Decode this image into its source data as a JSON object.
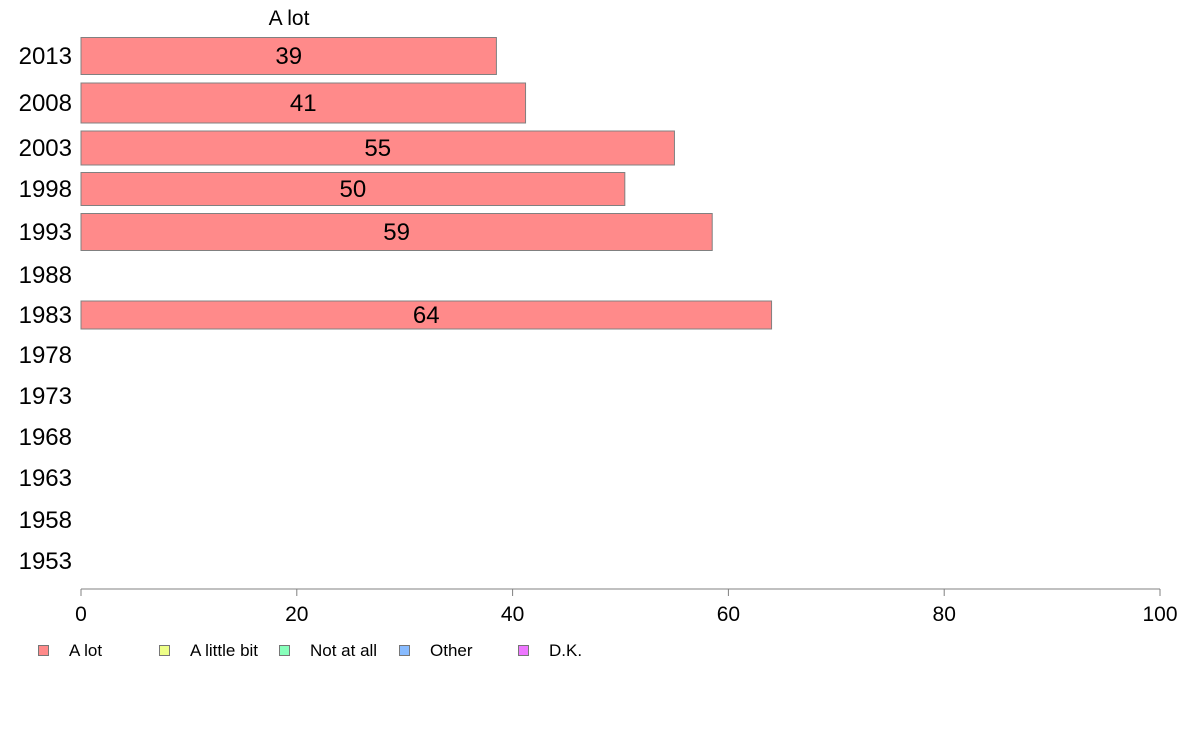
{
  "chart_data": {
    "type": "bar",
    "orientation": "horizontal",
    "title": "A lot",
    "categories": [
      "2013",
      "2008",
      "2003",
      "1998",
      "1993",
      "1988",
      "1983",
      "1978",
      "1973",
      "1968",
      "1963",
      "1958",
      "1953"
    ],
    "series": [
      {
        "name": "A lot",
        "color": "#ff8a8a",
        "values": [
          38.5,
          41.2,
          55,
          50.4,
          58.5,
          null,
          64,
          null,
          null,
          null,
          null,
          null,
          null
        ],
        "labels": [
          "39",
          "41",
          "55",
          "50",
          "59",
          "",
          "64",
          "",
          "",
          "",
          "",
          "",
          ""
        ]
      }
    ],
    "xlim": [
      0,
      100
    ],
    "xticks": [
      "0",
      "20",
      "40",
      "60",
      "80",
      "100"
    ],
    "xlabel": "",
    "ylabel": "",
    "grid": false,
    "legend_position": "bottom",
    "legend": [
      {
        "label": "A lot",
        "color": "#ff8a8a"
      },
      {
        "label": "A little bit",
        "color": "#eeff88"
      },
      {
        "label": "Not at all",
        "color": "#88ffbb"
      },
      {
        "label": "Other",
        "color": "#88bbff"
      },
      {
        "label": "D.K.",
        "color": "#ee77ff"
      }
    ]
  }
}
